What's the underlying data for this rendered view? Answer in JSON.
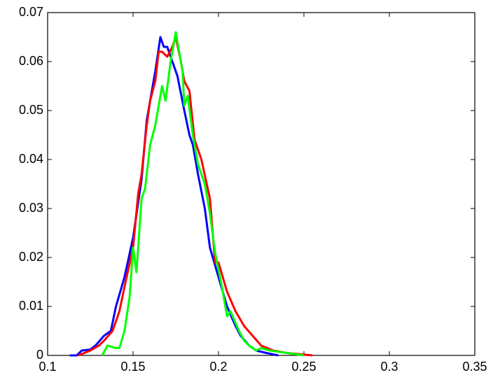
{
  "chart_data": {
    "type": "line",
    "xlim": [
      0.1,
      0.35
    ],
    "xticks": [
      0.1,
      0.15,
      0.2,
      0.25,
      0.3,
      0.35
    ],
    "ylim": [
      0,
      0.07
    ],
    "yticks": [
      0,
      0.01,
      0.02,
      0.03,
      0.04,
      0.05,
      0.06,
      0.07
    ],
    "series": [
      {
        "color": "#0000ff",
        "x": [
          0.113,
          0.117,
          0.12,
          0.125,
          0.128,
          0.133,
          0.137,
          0.14,
          0.145,
          0.15,
          0.155,
          0.158,
          0.16,
          0.163,
          0.166,
          0.168,
          0.17,
          0.173,
          0.176,
          0.18,
          0.183,
          0.185,
          0.188,
          0.192,
          0.195,
          0.2,
          0.205,
          0.21,
          0.213,
          0.218,
          0.222,
          0.228,
          0.235
        ],
        "values": [
          0,
          0,
          0.001,
          0.0012,
          0.002,
          0.004,
          0.005,
          0.01,
          0.016,
          0.024,
          0.036,
          0.048,
          0.052,
          0.058,
          0.065,
          0.063,
          0.063,
          0.06,
          0.057,
          0.05,
          0.045,
          0.043,
          0.037,
          0.03,
          0.022,
          0.016,
          0.01,
          0.006,
          0.004,
          0.002,
          0.001,
          0.0005,
          0
        ]
      },
      {
        "color": "#ff0000",
        "x": [
          0.118,
          0.125,
          0.13,
          0.133,
          0.138,
          0.142,
          0.145,
          0.15,
          0.153,
          0.155,
          0.158,
          0.16,
          0.163,
          0.165,
          0.167,
          0.17,
          0.173,
          0.175,
          0.178,
          0.18,
          0.183,
          0.186,
          0.19,
          0.195,
          0.198,
          0.2,
          0.205,
          0.21,
          0.215,
          0.22,
          0.225,
          0.232,
          0.24,
          0.255
        ],
        "values": [
          0,
          0.001,
          0.002,
          0.003,
          0.005,
          0.009,
          0.014,
          0.022,
          0.033,
          0.037,
          0.047,
          0.052,
          0.056,
          0.062,
          0.062,
          0.061,
          0.063,
          0.065,
          0.06,
          0.056,
          0.054,
          0.044,
          0.04,
          0.032,
          0.019,
          0.019,
          0.013,
          0.009,
          0.006,
          0.004,
          0.002,
          0.001,
          0.0005,
          0
        ]
      },
      {
        "color": "#00ff00",
        "x": [
          0.132,
          0.135,
          0.14,
          0.142,
          0.145,
          0.148,
          0.15,
          0.152,
          0.155,
          0.157,
          0.16,
          0.163,
          0.167,
          0.169,
          0.172,
          0.175,
          0.177,
          0.179,
          0.18,
          0.182,
          0.185,
          0.188,
          0.192,
          0.195,
          0.198,
          0.202,
          0.205,
          0.207,
          0.212,
          0.215,
          0.218,
          0.222,
          0.225,
          0.23,
          0.24,
          0.25
        ],
        "values": [
          0,
          0.002,
          0.0015,
          0.0015,
          0.005,
          0.012,
          0.022,
          0.017,
          0.032,
          0.034,
          0.043,
          0.047,
          0.055,
          0.052,
          0.06,
          0.066,
          0.062,
          0.058,
          0.051,
          0.053,
          0.045,
          0.039,
          0.035,
          0.029,
          0.021,
          0.014,
          0.008,
          0.009,
          0.005,
          0.003,
          0.002,
          0.001,
          0.0015,
          0.001,
          0.0005,
          0
        ]
      }
    ]
  }
}
